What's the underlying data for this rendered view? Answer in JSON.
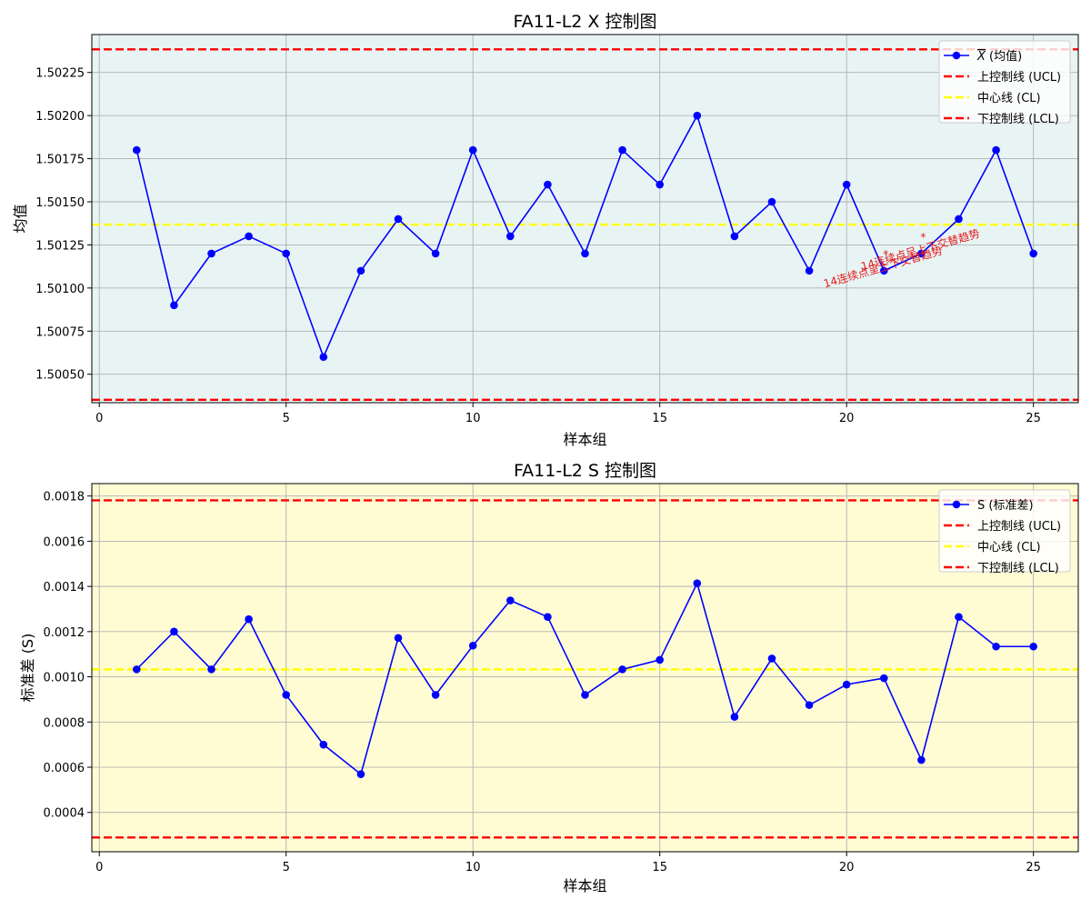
{
  "chart_data": [
    {
      "type": "line",
      "title": "FA11-L2 X 控制图",
      "xlabel": "样本组",
      "ylabel": "均值",
      "background": "#e8f4f4",
      "xlim": [
        -0.2,
        26.2
      ],
      "ylim": [
        1.500335,
        1.50247
      ],
      "x_ticks": [
        0,
        5,
        10,
        15,
        20,
        25
      ],
      "y_ticks": [
        1.5005,
        1.50075,
        1.501,
        1.50125,
        1.5015,
        1.50175,
        1.502,
        1.50225
      ],
      "y_tick_labels": [
        "1.50050",
        "1.50075",
        "1.50100",
        "1.50125",
        "1.50150",
        "1.50175",
        "1.50200",
        "1.50225"
      ],
      "grid": true,
      "legend_position": "top-right",
      "x": [
        1,
        2,
        3,
        4,
        5,
        6,
        7,
        8,
        9,
        10,
        11,
        12,
        13,
        14,
        15,
        16,
        17,
        18,
        19,
        20,
        21,
        22,
        23,
        24,
        25
      ],
      "series": [
        {
          "name": "X (均值)",
          "overline": "X",
          "legend_suffix": " (均值)",
          "color": "#0000ff",
          "values": [
            1.5018,
            1.5009,
            1.5012,
            1.5013,
            1.5012,
            1.5006,
            1.5011,
            1.5014,
            1.5012,
            1.5018,
            1.5013,
            1.5016,
            1.5012,
            1.5018,
            1.5016,
            1.502,
            1.5013,
            1.5015,
            1.5011,
            1.5016,
            1.5011,
            1.5012,
            1.5014,
            1.5018,
            1.5012
          ]
        }
      ],
      "limits": [
        {
          "name": "上控制线 (UCL)",
          "value": 1.502384,
          "color": "#ff0000",
          "style": "dashed"
        },
        {
          "name": "中心线 (CL)",
          "value": 1.501368,
          "color": "#ffff00",
          "style": "dashed"
        },
        {
          "name": "下控制线 (LCL)",
          "value": 1.500352,
          "color": "#ff0000",
          "style": "dashed"
        }
      ],
      "annotations": [
        {
          "text": "14连续点呈上下交替趋势",
          "x": 21,
          "y": 1.5011
        },
        {
          "text": "14连续点呈上下交替趋势",
          "x": 22,
          "y": 1.5012
        }
      ]
    },
    {
      "type": "line",
      "title": "FA11-L2 S 控制图",
      "xlabel": "样本组",
      "ylabel": "标准差 (S)",
      "background": "#fffcd4",
      "xlim": [
        -0.2,
        26.2
      ],
      "ylim": [
        0.000226,
        0.001855
      ],
      "x_ticks": [
        0,
        5,
        10,
        15,
        20,
        25
      ],
      "y_ticks": [
        0.0004,
        0.0006,
        0.0008,
        0.001,
        0.0012,
        0.0014,
        0.0016,
        0.0018
      ],
      "y_tick_labels": [
        "0.0004",
        "0.0006",
        "0.0008",
        "0.0010",
        "0.0012",
        "0.0014",
        "0.0016",
        "0.0018"
      ],
      "grid": true,
      "legend_position": "top-right",
      "x": [
        1,
        2,
        3,
        4,
        5,
        6,
        7,
        8,
        9,
        10,
        11,
        12,
        13,
        14,
        15,
        16,
        17,
        18,
        19,
        20,
        21,
        22,
        23,
        24,
        25
      ],
      "series": [
        {
          "name": "S (标准差)",
          "color": "#0000ff",
          "values": [
            0.001033,
            0.0012,
            0.001033,
            0.001255,
            0.00092,
            0.0007,
            0.000569,
            0.001172,
            0.00092,
            0.001138,
            0.001338,
            0.001265,
            0.00092,
            0.001033,
            0.001075,
            0.001414,
            0.000823,
            0.001081,
            0.000875,
            0.000966,
            0.000994,
            0.000632,
            0.001265,
            0.001134,
            0.001134
          ]
        }
      ],
      "limits": [
        {
          "name": "上控制线 (UCL)",
          "value": 0.001781,
          "color": "#ff0000",
          "style": "dashed"
        },
        {
          "name": "中心线 (CL)",
          "value": 0.001033,
          "color": "#ffff00",
          "style": "dashed"
        },
        {
          "name": "下控制线 (LCL)",
          "value": 0.000289,
          "color": "#ff0000",
          "style": "dashed"
        }
      ],
      "annotations": []
    }
  ]
}
